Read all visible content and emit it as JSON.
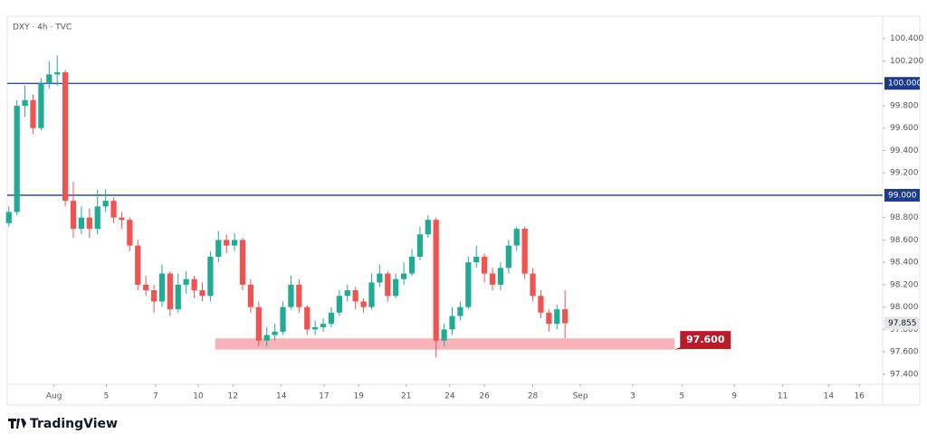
{
  "chart_data": {
    "type": "candlestick",
    "title": "DXY · 4h · TVC",
    "brand": "TradingView",
    "up_color": "#22ab94",
    "down_color": "#f05350",
    "open": [
      98.75,
      98.85,
      99.8,
      99.85,
      99.6,
      100.0,
      100.08,
      100.1,
      98.95,
      98.7,
      98.8,
      98.7,
      98.9,
      98.95,
      98.8,
      98.78,
      98.55,
      98.2,
      98.15,
      98.05,
      98.3,
      97.98,
      98.2,
      98.25,
      98.15,
      98.1,
      98.45,
      98.6,
      98.55,
      98.6,
      98.2,
      98.0,
      97.7,
      97.75,
      97.78,
      98.0,
      98.2,
      98.0,
      97.8,
      97.82,
      97.85,
      97.95,
      98.1,
      98.15,
      98.05,
      98.0,
      98.22,
      98.3,
      98.1,
      98.25,
      98.3,
      98.45,
      98.65,
      98.78,
      97.7,
      97.8,
      97.92,
      98.0,
      98.4,
      98.45,
      98.3,
      98.2,
      98.35,
      98.55,
      98.7,
      98.3,
      98.1,
      97.95,
      97.85,
      97.98
    ],
    "high": [
      98.9,
      99.85,
      99.98,
      99.9,
      100.05,
      100.2,
      100.25,
      100.12,
      99.12,
      98.9,
      98.88,
      99.05,
      99.05,
      98.98,
      98.85,
      98.8,
      98.6,
      98.28,
      98.2,
      98.38,
      98.32,
      98.3,
      98.32,
      98.28,
      98.22,
      98.5,
      98.68,
      98.65,
      98.66,
      98.62,
      98.25,
      98.05,
      97.82,
      97.85,
      98.05,
      98.28,
      98.25,
      98.02,
      97.88,
      97.9,
      98.0,
      98.15,
      98.2,
      98.18,
      98.08,
      98.3,
      98.38,
      98.32,
      98.3,
      98.4,
      98.52,
      98.72,
      98.82,
      98.8,
      97.85,
      98.0,
      98.05,
      98.45,
      98.55,
      98.48,
      98.35,
      98.4,
      98.6,
      98.72,
      98.72,
      98.35,
      98.15,
      97.98,
      98.02,
      98.15
    ],
    "low": [
      98.72,
      98.82,
      99.7,
      99.55,
      99.58,
      99.95,
      99.98,
      98.9,
      98.62,
      98.65,
      98.62,
      98.65,
      98.85,
      98.75,
      98.7,
      98.5,
      98.15,
      98.1,
      97.95,
      98.0,
      97.92,
      97.95,
      98.12,
      98.08,
      98.05,
      98.05,
      98.4,
      98.48,
      98.5,
      98.15,
      97.95,
      97.65,
      97.65,
      97.7,
      97.75,
      97.98,
      97.95,
      97.75,
      97.75,
      97.78,
      97.82,
      97.92,
      98.05,
      97.98,
      97.95,
      97.98,
      98.18,
      98.05,
      98.08,
      98.2,
      98.28,
      98.42,
      98.62,
      97.55,
      97.65,
      97.75,
      97.88,
      97.98,
      98.35,
      98.22,
      98.15,
      98.15,
      98.3,
      98.5,
      98.25,
      98.05,
      97.9,
      97.78,
      97.8,
      97.72
    ],
    "close": [
      98.85,
      99.8,
      99.85,
      99.6,
      100.0,
      100.08,
      100.1,
      98.95,
      98.7,
      98.8,
      98.7,
      98.9,
      98.95,
      98.8,
      98.78,
      98.55,
      98.2,
      98.15,
      98.05,
      98.3,
      97.98,
      98.2,
      98.25,
      98.15,
      98.1,
      98.45,
      98.6,
      98.55,
      98.6,
      98.2,
      98.0,
      97.7,
      97.75,
      97.78,
      98.0,
      98.2,
      98.0,
      97.8,
      97.82,
      97.85,
      97.95,
      98.1,
      98.15,
      98.05,
      98.0,
      98.22,
      98.3,
      98.1,
      98.25,
      98.3,
      98.45,
      98.65,
      98.78,
      97.7,
      97.8,
      97.92,
      98.0,
      98.4,
      98.45,
      98.3,
      98.2,
      98.35,
      98.55,
      98.7,
      98.3,
      98.1,
      97.95,
      97.85,
      97.98,
      97.855
    ],
    "xlim": [
      -0.2,
      108.4
    ],
    "xticks": [
      {
        "value": 5.6,
        "label": "Aug"
      },
      {
        "value": 12.1,
        "label": "5"
      },
      {
        "value": 18.2,
        "label": "7"
      },
      {
        "value": 23.5,
        "label": "10"
      },
      {
        "value": 27.8,
        "label": "12"
      },
      {
        "value": 33.8,
        "label": "14"
      },
      {
        "value": 39.1,
        "label": "17"
      },
      {
        "value": 43.4,
        "label": "19"
      },
      {
        "value": 49.3,
        "label": "21"
      },
      {
        "value": 54.7,
        "label": "24"
      },
      {
        "value": 59,
        "label": "26"
      },
      {
        "value": 65,
        "label": "28"
      },
      {
        "value": 70.9,
        "label": "Sep"
      },
      {
        "value": 77.4,
        "label": "3"
      },
      {
        "value": 83.5,
        "label": "5"
      },
      {
        "value": 90,
        "label": "9"
      },
      {
        "value": 96,
        "label": "11"
      },
      {
        "value": 101.7,
        "label": "14"
      },
      {
        "value": 105.5,
        "label": "16"
      }
    ],
    "ylim": [
      97.31,
      100.6
    ],
    "yticks": [
      {
        "value": 97.4,
        "label": "97.400"
      },
      {
        "value": 97.6,
        "label": "97.600"
      },
      {
        "value": 97.8,
        "label": "97.800"
      },
      {
        "value": 98,
        "label": "98.000"
      },
      {
        "value": 98.2,
        "label": "98.200"
      },
      {
        "value": 98.4,
        "label": "98.400"
      },
      {
        "value": 98.6,
        "label": "98.600"
      },
      {
        "value": 98.8,
        "label": "98.800"
      },
      {
        "value": 99.2,
        "label": "99.200"
      },
      {
        "value": 99.4,
        "label": "99.400"
      },
      {
        "value": 99.6,
        "label": "99.600"
      },
      {
        "value": 99.8,
        "label": "99.800"
      },
      {
        "value": 100.2,
        "label": "100.200"
      },
      {
        "value": 100.4,
        "label": "100.400"
      }
    ],
    "hlines": [
      {
        "value": 100,
        "label": "100.000",
        "color": "#1e3a8a"
      },
      {
        "value": 99,
        "label": "99.000",
        "color": "#1e3a8a"
      }
    ],
    "zone": {
      "low": 97.62,
      "high": 97.72,
      "x_range": [
        25.6,
        82.6
      ],
      "color": "#f7b3b8",
      "level": {
        "value": 97.6,
        "label": "97.600"
      },
      "label_color": "#b71c2a"
    },
    "last_price_label": "97.855"
  }
}
